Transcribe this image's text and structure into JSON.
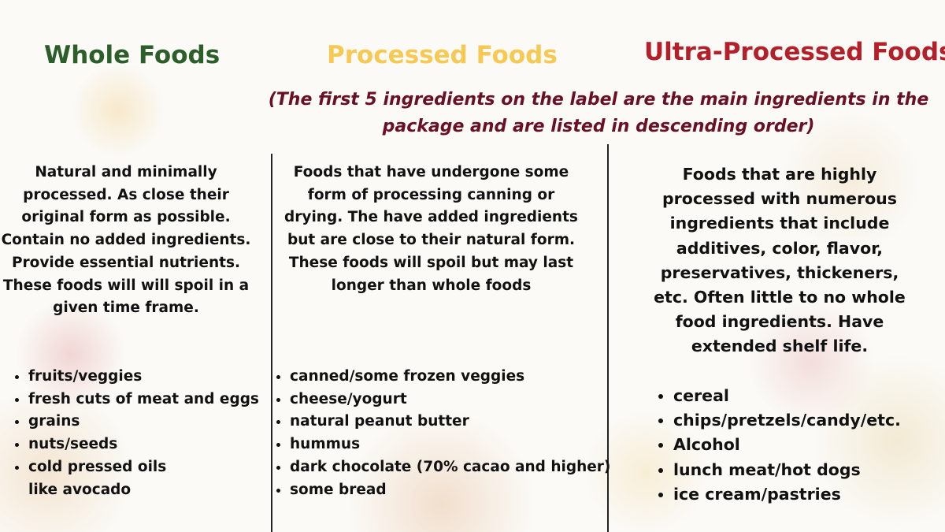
{
  "columns": [
    {
      "title": "Whole Foods",
      "title_color": "#2c5e2a",
      "description": "Natural and minimally processed. As close their original form as possible. Contain no added ingredients. Provide essential nutrients. These foods will will spoil in a given time frame.",
      "examples": [
        "fruits/veggies",
        "fresh cuts of meat and eggs",
        "grains",
        "nuts/seeds",
        "cold pressed oils like avocado"
      ]
    },
    {
      "title": "Processed Foods",
      "title_color": "#f6c954",
      "description": "Foods that have undergone some form of processing canning or drying. The have added ingredients but are close to their natural form. These foods will spoil but may last longer than whole foods",
      "examples": [
        "canned/some frozen veggies",
        "cheese/yogurt",
        "natural peanut butter",
        "hummus",
        "dark chocolate (70% cacao and higher)",
        "some bread"
      ]
    },
    {
      "title": "Ultra-Processed Foods",
      "title_color": "#b3202a",
      "description": "Foods that are highly processed with  numerous ingredients that include additives, color, flavor, preservatives, thickeners, etc. Often little to no whole food ingredients. Have extended shelf life.",
      "examples": [
        "cereal",
        "chips/pretzels/candy/etc.",
        "Alcohol",
        "lunch meat/hot dogs",
        "ice cream/pastries"
      ]
    }
  ],
  "note": "(The first 5 ingredients on the label are the main ingredients in the package and are listed in descending order)",
  "note_color": "#6a1024"
}
